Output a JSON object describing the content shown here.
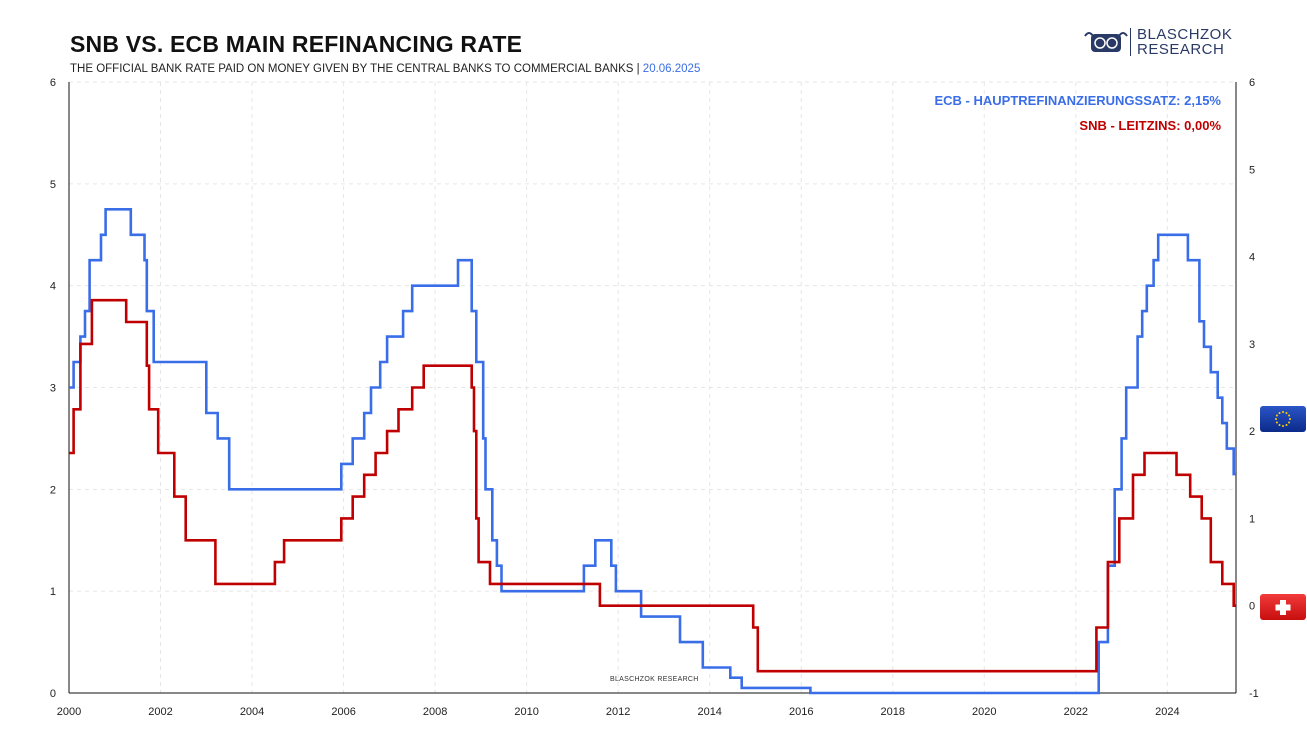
{
  "title": "SNB VS. ECB MAIN REFINANCING RATE",
  "subtitle": "THE OFFICIAL BANK RATE PAID ON MONEY GIVEN BY THE CENTRAL BANKS TO COMMERCIAL BANKS |",
  "date": "20.06.2025",
  "logo": {
    "line1": "BLASCHZOK",
    "line2": "RESEARCH"
  },
  "watermark": "BLASCHZOK  RESEARCH",
  "legend": {
    "ecb": "ECB - HAUPTREFINANZIERUNGSSATZ: 2,15%",
    "snb": "SNB - LEITZINS: 0,00%"
  },
  "colors": {
    "ecb": "#3a6ee8",
    "snb": "#c00000",
    "grid": "#e6e6e6"
  },
  "icons": {
    "ecb_flag": "eu-flag-icon",
    "snb_flag": "swiss-flag-icon"
  },
  "chart_data": {
    "type": "line",
    "x_ticks": [
      "2000",
      "2002",
      "2004",
      "2006",
      "2008",
      "2010",
      "2012",
      "2014",
      "2016",
      "2018",
      "2020",
      "2022",
      "2024"
    ],
    "x_range": [
      2000,
      2025.5
    ],
    "left_axis": {
      "ticks": [
        "0",
        "1",
        "2",
        "3",
        "4",
        "5",
        "6"
      ],
      "ylim": [
        0,
        6
      ],
      "series": "ECB"
    },
    "right_axis": {
      "ticks": [
        "-1",
        "0",
        "1",
        "2",
        "3",
        "4",
        "5",
        "6"
      ],
      "ylim": [
        -1,
        6
      ],
      "series": "SNB"
    },
    "grid": true,
    "series": [
      {
        "name": "ECB",
        "axis": "left",
        "color": "#3a6ee8",
        "points": [
          [
            2000.0,
            3.0
          ],
          [
            2000.1,
            3.0
          ],
          [
            2000.1,
            3.25
          ],
          [
            2000.25,
            3.25
          ],
          [
            2000.25,
            3.5
          ],
          [
            2000.35,
            3.5
          ],
          [
            2000.35,
            3.75
          ],
          [
            2000.45,
            3.75
          ],
          [
            2000.45,
            4.25
          ],
          [
            2000.7,
            4.25
          ],
          [
            2000.7,
            4.5
          ],
          [
            2000.8,
            4.5
          ],
          [
            2000.8,
            4.75
          ],
          [
            2001.35,
            4.75
          ],
          [
            2001.35,
            4.5
          ],
          [
            2001.65,
            4.5
          ],
          [
            2001.65,
            4.25
          ],
          [
            2001.7,
            4.25
          ],
          [
            2001.7,
            3.75
          ],
          [
            2001.85,
            3.75
          ],
          [
            2001.85,
            3.25
          ],
          [
            2003.0,
            3.25
          ],
          [
            2003.0,
            2.75
          ],
          [
            2003.25,
            2.75
          ],
          [
            2003.25,
            2.5
          ],
          [
            2003.5,
            2.5
          ],
          [
            2003.5,
            2.0
          ],
          [
            2005.95,
            2.0
          ],
          [
            2005.95,
            2.25
          ],
          [
            2006.2,
            2.25
          ],
          [
            2006.2,
            2.5
          ],
          [
            2006.45,
            2.5
          ],
          [
            2006.45,
            2.75
          ],
          [
            2006.6,
            2.75
          ],
          [
            2006.6,
            3.0
          ],
          [
            2006.8,
            3.0
          ],
          [
            2006.8,
            3.25
          ],
          [
            2006.95,
            3.25
          ],
          [
            2006.95,
            3.5
          ],
          [
            2007.3,
            3.5
          ],
          [
            2007.3,
            3.75
          ],
          [
            2007.5,
            3.75
          ],
          [
            2007.5,
            4.0
          ],
          [
            2008.5,
            4.0
          ],
          [
            2008.5,
            4.25
          ],
          [
            2008.8,
            4.25
          ],
          [
            2008.8,
            3.75
          ],
          [
            2008.9,
            3.75
          ],
          [
            2008.9,
            3.25
          ],
          [
            2009.05,
            3.25
          ],
          [
            2009.05,
            2.5
          ],
          [
            2009.1,
            2.5
          ],
          [
            2009.1,
            2.0
          ],
          [
            2009.25,
            2.0
          ],
          [
            2009.25,
            1.5
          ],
          [
            2009.35,
            1.5
          ],
          [
            2009.35,
            1.25
          ],
          [
            2009.45,
            1.25
          ],
          [
            2009.45,
            1.0
          ],
          [
            2011.25,
            1.0
          ],
          [
            2011.25,
            1.25
          ],
          [
            2011.5,
            1.25
          ],
          [
            2011.5,
            1.5
          ],
          [
            2011.85,
            1.5
          ],
          [
            2011.85,
            1.25
          ],
          [
            2011.95,
            1.25
          ],
          [
            2011.95,
            1.0
          ],
          [
            2012.5,
            1.0
          ],
          [
            2012.5,
            0.75
          ],
          [
            2013.35,
            0.75
          ],
          [
            2013.35,
            0.5
          ],
          [
            2013.85,
            0.5
          ],
          [
            2013.85,
            0.25
          ],
          [
            2014.45,
            0.25
          ],
          [
            2014.45,
            0.15
          ],
          [
            2014.7,
            0.15
          ],
          [
            2014.7,
            0.05
          ],
          [
            2016.2,
            0.05
          ],
          [
            2016.2,
            0.0
          ],
          [
            2022.5,
            0.0
          ],
          [
            2022.5,
            0.5
          ],
          [
            2022.7,
            0.5
          ],
          [
            2022.7,
            1.25
          ],
          [
            2022.85,
            1.25
          ],
          [
            2022.85,
            2.0
          ],
          [
            2023.0,
            2.0
          ],
          [
            2023.0,
            2.5
          ],
          [
            2023.1,
            2.5
          ],
          [
            2023.1,
            3.0
          ],
          [
            2023.35,
            3.0
          ],
          [
            2023.35,
            3.5
          ],
          [
            2023.45,
            3.5
          ],
          [
            2023.45,
            3.75
          ],
          [
            2023.55,
            3.75
          ],
          [
            2023.55,
            4.0
          ],
          [
            2023.7,
            4.0
          ],
          [
            2023.7,
            4.25
          ],
          [
            2023.8,
            4.25
          ],
          [
            2023.8,
            4.5
          ],
          [
            2024.45,
            4.5
          ],
          [
            2024.45,
            4.25
          ],
          [
            2024.7,
            4.25
          ],
          [
            2024.7,
            3.65
          ],
          [
            2024.8,
            3.65
          ],
          [
            2024.8,
            3.4
          ],
          [
            2024.95,
            3.4
          ],
          [
            2024.95,
            3.15
          ],
          [
            2025.1,
            3.15
          ],
          [
            2025.1,
            2.9
          ],
          [
            2025.2,
            2.9
          ],
          [
            2025.2,
            2.65
          ],
          [
            2025.3,
            2.65
          ],
          [
            2025.3,
            2.4
          ],
          [
            2025.45,
            2.4
          ],
          [
            2025.45,
            2.15
          ],
          [
            2025.5,
            2.15
          ]
        ]
      },
      {
        "name": "SNB",
        "axis": "right",
        "color": "#c00000",
        "points": [
          [
            2000.0,
            1.75
          ],
          [
            2000.1,
            1.75
          ],
          [
            2000.1,
            2.25
          ],
          [
            2000.25,
            2.25
          ],
          [
            2000.25,
            3.0
          ],
          [
            2000.5,
            3.0
          ],
          [
            2000.5,
            3.5
          ],
          [
            2001.25,
            3.5
          ],
          [
            2001.25,
            3.25
          ],
          [
            2001.7,
            3.25
          ],
          [
            2001.7,
            2.75
          ],
          [
            2001.75,
            2.75
          ],
          [
            2001.75,
            2.25
          ],
          [
            2001.95,
            2.25
          ],
          [
            2001.95,
            1.75
          ],
          [
            2002.3,
            1.75
          ],
          [
            2002.3,
            1.25
          ],
          [
            2002.55,
            1.25
          ],
          [
            2002.55,
            0.75
          ],
          [
            2003.2,
            0.75
          ],
          [
            2003.2,
            0.25
          ],
          [
            2004.5,
            0.25
          ],
          [
            2004.5,
            0.5
          ],
          [
            2004.7,
            0.5
          ],
          [
            2004.7,
            0.75
          ],
          [
            2005.95,
            0.75
          ],
          [
            2005.95,
            1.0
          ],
          [
            2006.2,
            1.0
          ],
          [
            2006.2,
            1.25
          ],
          [
            2006.45,
            1.25
          ],
          [
            2006.45,
            1.5
          ],
          [
            2006.7,
            1.5
          ],
          [
            2006.7,
            1.75
          ],
          [
            2006.95,
            1.75
          ],
          [
            2006.95,
            2.0
          ],
          [
            2007.2,
            2.0
          ],
          [
            2007.2,
            2.25
          ],
          [
            2007.5,
            2.25
          ],
          [
            2007.5,
            2.5
          ],
          [
            2007.75,
            2.5
          ],
          [
            2007.75,
            2.75
          ],
          [
            2008.8,
            2.75
          ],
          [
            2008.8,
            2.5
          ],
          [
            2008.85,
            2.5
          ],
          [
            2008.85,
            2.0
          ],
          [
            2008.9,
            2.0
          ],
          [
            2008.9,
            1.0
          ],
          [
            2008.95,
            1.0
          ],
          [
            2008.95,
            0.5
          ],
          [
            2009.2,
            0.5
          ],
          [
            2009.2,
            0.25
          ],
          [
            2011.6,
            0.25
          ],
          [
            2011.6,
            0.0
          ],
          [
            2014.95,
            0.0
          ],
          [
            2014.95,
            -0.25
          ],
          [
            2015.05,
            -0.25
          ],
          [
            2015.05,
            -0.75
          ],
          [
            2022.45,
            -0.75
          ],
          [
            2022.45,
            -0.25
          ],
          [
            2022.7,
            -0.25
          ],
          [
            2022.7,
            0.5
          ],
          [
            2022.95,
            0.5
          ],
          [
            2022.95,
            1.0
          ],
          [
            2023.25,
            1.0
          ],
          [
            2023.25,
            1.5
          ],
          [
            2023.5,
            1.5
          ],
          [
            2023.5,
            1.75
          ],
          [
            2024.2,
            1.75
          ],
          [
            2024.2,
            1.5
          ],
          [
            2024.5,
            1.5
          ],
          [
            2024.5,
            1.25
          ],
          [
            2024.75,
            1.25
          ],
          [
            2024.75,
            1.0
          ],
          [
            2024.95,
            1.0
          ],
          [
            2024.95,
            0.5
          ],
          [
            2025.2,
            0.5
          ],
          [
            2025.2,
            0.25
          ],
          [
            2025.45,
            0.25
          ],
          [
            2025.45,
            0.0
          ],
          [
            2025.5,
            0.0
          ]
        ]
      }
    ]
  }
}
